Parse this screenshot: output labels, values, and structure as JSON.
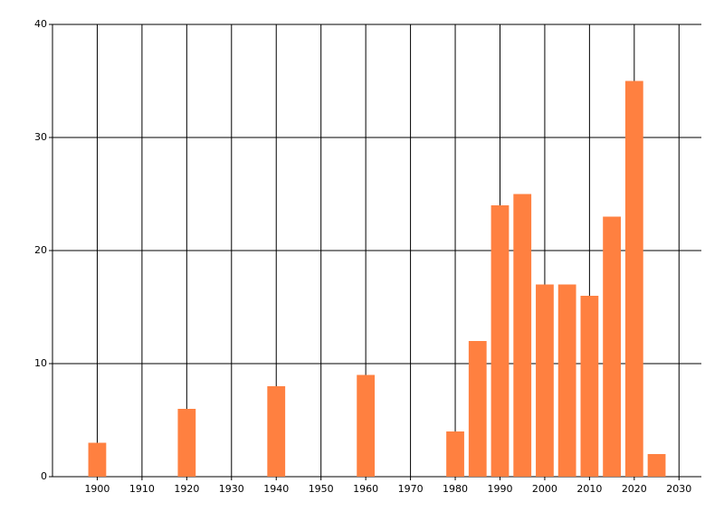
{
  "chart_data": {
    "type": "bar",
    "x": [
      1900,
      1920,
      1940,
      1960,
      1980,
      1985,
      1990,
      1995,
      2000,
      2005,
      2010,
      2015,
      2020,
      2025
    ],
    "values": [
      3,
      6,
      8,
      9,
      4,
      12,
      24,
      25,
      17,
      17,
      16,
      23,
      35,
      2
    ],
    "color": "#ff8040",
    "xlim": [
      1890,
      2035
    ],
    "xticks": [
      1900,
      1910,
      1920,
      1930,
      1940,
      1950,
      1960,
      1970,
      1980,
      1990,
      2000,
      2010,
      2020,
      2030
    ],
    "ylim": [
      0,
      40
    ],
    "yticks": [
      0,
      10,
      20,
      30,
      40
    ],
    "grid": true
  }
}
